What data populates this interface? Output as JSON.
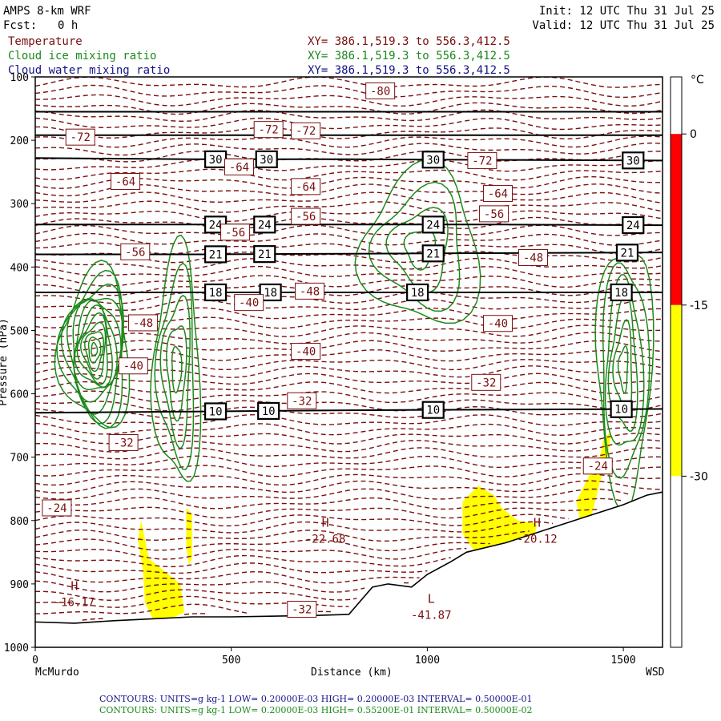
{
  "header": {
    "model": "AMPS 8-km WRF",
    "forecast_label": "Fcst:",
    "forecast_value": "0 h",
    "init": "Init: 12 UTC Thu 31 Jul 25",
    "valid": "Valid: 12 UTC Thu 31 Jul 25",
    "fields": [
      {
        "name": "Temperature",
        "xy": "XY= 386.1,519.3 to 556.3,412.5",
        "color": "#7a0f0f"
      },
      {
        "name": "Cloud ice mixing ratio",
        "xy": "XY= 386.1,519.3 to 556.3,412.5",
        "color": "#1b8a1b"
      },
      {
        "name": "Cloud water mixing ratio",
        "xy": "XY= 386.1,519.3 to 556.3,412.5",
        "color": "#13138a"
      }
    ]
  },
  "axes": {
    "x_title": "Distance (km)",
    "x_left_label": "McMurdo",
    "x_right_label": "WSD",
    "x_ticks": [
      "0",
      "500",
      "1000",
      "1500"
    ],
    "y_ticks": [
      "100",
      "200",
      "300",
      "400",
      "500",
      "600",
      "700",
      "800",
      "900",
      "1000"
    ],
    "y_title": "Pressure (hPa)"
  },
  "colorbar": {
    "unit": "°C",
    "labels": [
      "0",
      "-15",
      "-30"
    ]
  },
  "footer": {
    "line1": "CONTOURS:  UNITS=g kg-1  LOW= 0.20000E-03  HIGH= 0.20000E-03  INTERVAL=  0.50000E-01",
    "line2": "CONTOURS:  UNITS=g kg-1  LOW= 0.20000E-03  HIGH= 0.55200E-01  INTERVAL=  0.50000E-02"
  },
  "chart_data": {
    "type": "cross-section contour",
    "x_range_km": [
      0,
      1600
    ],
    "p_range_hpa": [
      100,
      1000
    ],
    "terrain": [
      [
        0,
        960
      ],
      [
        100,
        962
      ],
      [
        200,
        958
      ],
      [
        300,
        955
      ],
      [
        400,
        952
      ],
      [
        500,
        952
      ],
      [
        600,
        951
      ],
      [
        700,
        950
      ],
      [
        800,
        948
      ],
      [
        860,
        905
      ],
      [
        900,
        900
      ],
      [
        960,
        905
      ],
      [
        1000,
        885
      ],
      [
        1060,
        865
      ],
      [
        1100,
        850
      ],
      [
        1200,
        835
      ],
      [
        1300,
        815
      ],
      [
        1400,
        795
      ],
      [
        1500,
        775
      ],
      [
        1560,
        760
      ],
      [
        1600,
        755
      ]
    ],
    "theta_lines": [
      {
        "label": "30",
        "p": [
          228,
          230,
          230,
          231,
          232
        ],
        "label_x": [
          460,
          590,
          1015,
          1525
        ]
      },
      {
        "label": "24",
        "p": [
          333,
          333,
          333,
          333,
          334
        ],
        "label_x": [
          460,
          585,
          1015,
          1525
        ]
      },
      {
        "label": "21",
        "p": [
          380,
          380,
          379,
          378,
          377
        ],
        "label_x": [
          460,
          585,
          1015,
          1510
        ]
      },
      {
        "label": "18",
        "p": [
          440,
          440,
          440,
          440,
          440
        ],
        "label_x": [
          460,
          600,
          975,
          1495
        ]
      },
      {
        "label": "10",
        "p": [
          630,
          628,
          626,
          625,
          624
        ],
        "label_x": [
          460,
          595,
          1015,
          1495
        ]
      }
    ],
    "theta_plain_lines": [
      155,
      192
    ],
    "theta_x": [
      0,
      400,
      800,
      1200,
      1600
    ],
    "temp_labels": [
      {
        "text": "-80",
        "x": 880,
        "p": 122
      },
      {
        "text": "-72",
        "x": 115,
        "p": 195
      },
      {
        "text": "-72",
        "x": 595,
        "p": 183
      },
      {
        "text": "-72",
        "x": 690,
        "p": 185
      },
      {
        "text": "-72",
        "x": 1140,
        "p": 232
      },
      {
        "text": "-64",
        "x": 230,
        "p": 265
      },
      {
        "text": "-64",
        "x": 520,
        "p": 242
      },
      {
        "text": "-64",
        "x": 690,
        "p": 273
      },
      {
        "text": "-64",
        "x": 1180,
        "p": 284
      },
      {
        "text": "-56",
        "x": 510,
        "p": 345
      },
      {
        "text": "-56",
        "x": 690,
        "p": 320
      },
      {
        "text": "-56",
        "x": 1170,
        "p": 316
      },
      {
        "text": "-56",
        "x": 255,
        "p": 376
      },
      {
        "text": "-48",
        "x": 275,
        "p": 488
      },
      {
        "text": "-48",
        "x": 700,
        "p": 438
      },
      {
        "text": "-48",
        "x": 1270,
        "p": 385
      },
      {
        "text": "-40",
        "x": 545,
        "p": 456
      },
      {
        "text": "-40",
        "x": 690,
        "p": 533
      },
      {
        "text": "-40",
        "x": 1180,
        "p": 489
      },
      {
        "text": "-40",
        "x": 250,
        "p": 556
      },
      {
        "text": "-32",
        "x": 680,
        "p": 611
      },
      {
        "text": "-32",
        "x": 1150,
        "p": 582
      },
      {
        "text": "-32",
        "x": 225,
        "p": 677
      },
      {
        "text": "-32",
        "x": 680,
        "p": 940
      },
      {
        "text": "-24",
        "x": 55,
        "p": 780
      },
      {
        "text": "-24",
        "x": 1435,
        "p": 714
      }
    ],
    "extrema": [
      {
        "kind": "H",
        "value": "-16.17",
        "x": 100,
        "p": 920
      },
      {
        "kind": "H",
        "value": "-22.68",
        "x": 740,
        "p": 820
      },
      {
        "kind": "H",
        "value": "-20.12",
        "x": 1280,
        "p": 820
      },
      {
        "kind": "L",
        "value": "-41.87",
        "x": 1010,
        "p": 940
      }
    ],
    "shaded_regions_temp_range_c": [
      -30,
      -15
    ],
    "colorbar_bands": [
      {
        "from": 0,
        "to": 5,
        "color": "#ffffff"
      },
      {
        "from": -15,
        "to": 0,
        "color": "#ff0000"
      },
      {
        "from": -30,
        "to": -15,
        "color": "#ffff00"
      },
      {
        "from": -45,
        "to": -30,
        "color": "#ffffff"
      }
    ],
    "cloud_ice_centers": [
      {
        "x": 150,
        "p": 530,
        "rx": 90,
        "rp": 120,
        "levels": 12
      },
      {
        "x": 360,
        "p": 560,
        "rx": 60,
        "rp": 180,
        "levels": 5
      },
      {
        "x": 980,
        "p": 370,
        "rx": 150,
        "rp": 120,
        "levels": 4
      },
      {
        "x": 1500,
        "p": 560,
        "rx": 70,
        "rp": 200,
        "levels": 6
      }
    ]
  }
}
